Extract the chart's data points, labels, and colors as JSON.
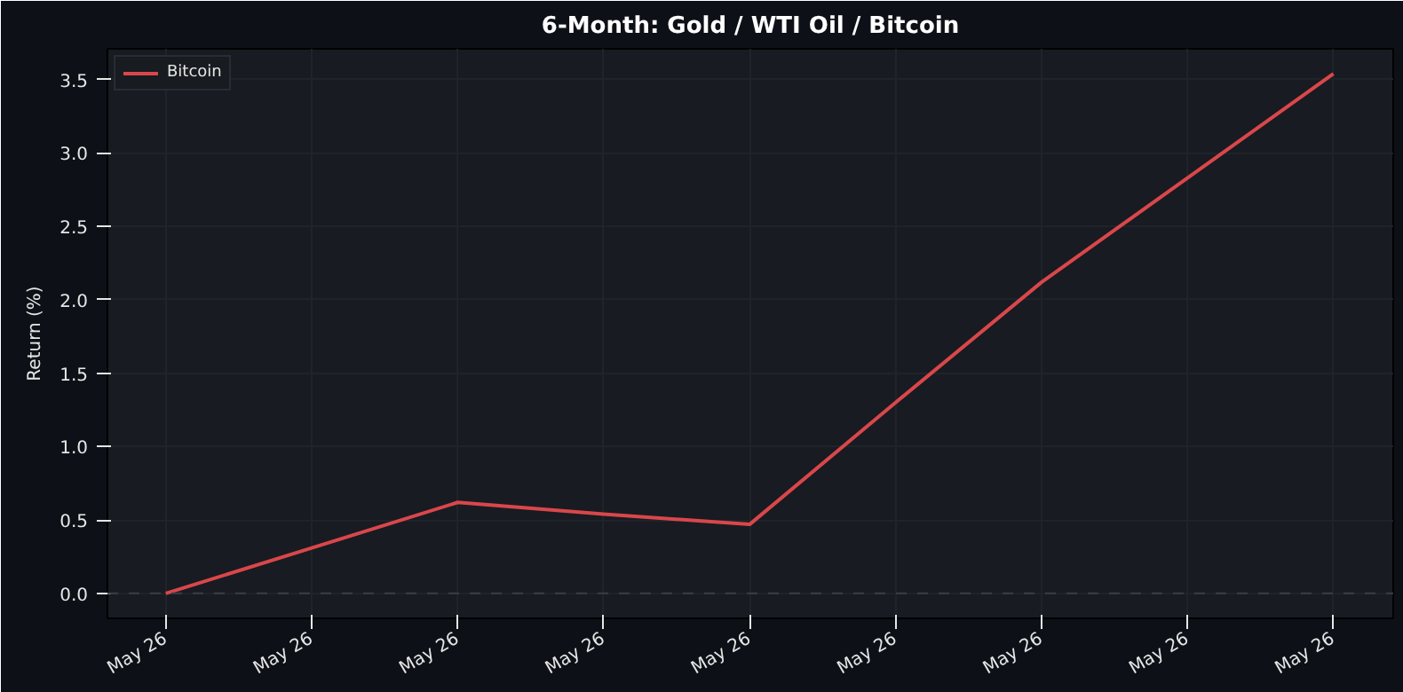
{
  "chart_data": {
    "type": "line",
    "title": "6-Month: Gold / WTI Oil / Bitcoin",
    "ylabel": "Return (%)",
    "categories": [
      "May 26",
      "May 26",
      "May 26",
      "May 26",
      "May 26",
      "May 26",
      "May 26",
      "May 26",
      "May 26"
    ],
    "series": [
      {
        "name": "Bitcoin",
        "color": "#d9474b",
        "values": [
          0.0,
          0.31,
          0.62,
          0.54,
          0.47,
          1.3,
          2.12,
          2.83,
          3.54
        ]
      }
    ],
    "ylim": [
      -0.17,
      3.71
    ],
    "yticks": [
      {
        "value": 0,
        "label": "0.0"
      },
      {
        "value": 0.5,
        "label": "0.5"
      },
      {
        "value": 1,
        "label": "1.0"
      },
      {
        "value": 1.5,
        "label": "1.5"
      },
      {
        "value": 2,
        "label": "2.0"
      },
      {
        "value": 2.5,
        "label": "2.5"
      },
      {
        "value": 3,
        "label": "3.0"
      },
      {
        "value": 3.5,
        "label": "3.5"
      }
    ],
    "ref_lines": [
      {
        "axis": "y",
        "value": 0,
        "color": "#3a3e45",
        "line_style": "dashed"
      }
    ],
    "grid": true,
    "legend": "top left",
    "line_style": "solid",
    "marker": "none"
  }
}
